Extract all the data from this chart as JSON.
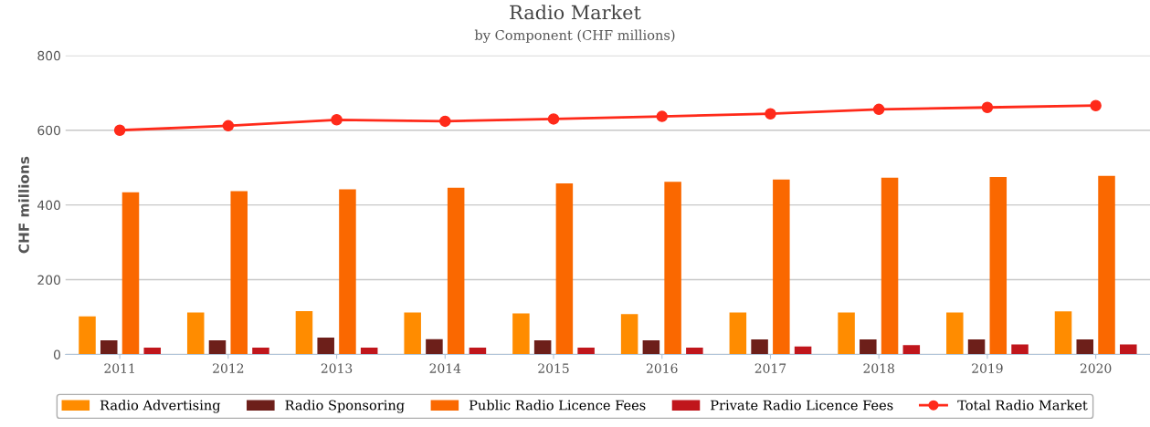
{
  "chart_data": {
    "type": "bar",
    "title": "Radio Market",
    "subtitle": "by Component (CHF millions)",
    "ylabel": "CHF millions",
    "categories": [
      "2011",
      "2012",
      "2013",
      "2014",
      "2015",
      "2016",
      "2017",
      "2018",
      "2019",
      "2020"
    ],
    "series": [
      {
        "name": "Radio Advertising",
        "color": "#ff8c00",
        "values": [
          102,
          112,
          116,
          112,
          110,
          108,
          112,
          112,
          112,
          115
        ]
      },
      {
        "name": "Radio Sponsoring",
        "color": "#6d1f1a",
        "values": [
          38,
          38,
          45,
          41,
          38,
          38,
          40,
          40,
          40,
          40
        ]
      },
      {
        "name": "Public Radio Licence Fees",
        "color": "#fa6800",
        "values": [
          434,
          437,
          442,
          446,
          458,
          462,
          468,
          473,
          475,
          478
        ]
      },
      {
        "name": "Private Radio Licence Fees",
        "color": "#c0161c",
        "values": [
          18,
          18,
          18,
          18,
          18,
          18,
          21,
          25,
          27,
          27
        ]
      },
      {
        "name": "Total Radio Market",
        "type": "line",
        "color": "#ff2a1a",
        "marker": "circle",
        "values": [
          600,
          612,
          628,
          624,
          630,
          637,
          644,
          656,
          661,
          666
        ]
      }
    ],
    "ylim": [
      0,
      800
    ],
    "yticks": [
      0,
      200,
      400,
      600,
      800
    ],
    "grid": "y",
    "legend": "bottom"
  }
}
